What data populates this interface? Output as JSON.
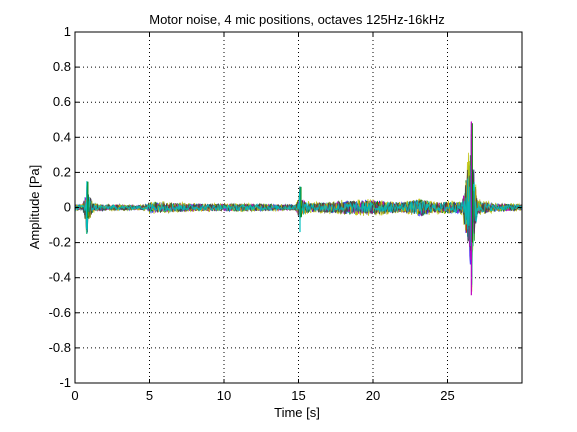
{
  "chart_data": {
    "type": "line",
    "title": "Motor noise, 4 mic positions, octaves 125Hz-16kHz",
    "xlabel": "Time [s]",
    "ylabel": "Amplitude [Pa]",
    "xlim": [
      0,
      30
    ],
    "ylim": [
      -1,
      1
    ],
    "xticks": [
      0,
      5,
      10,
      15,
      20,
      25
    ],
    "yticks": [
      -1,
      -0.8,
      -0.6,
      -0.4,
      -0.2,
      0,
      0.2,
      0.4,
      0.6,
      0.8,
      1
    ],
    "grid": true,
    "grid_style": "dotted",
    "legend": "none",
    "series_colors": [
      "#0000ff",
      "#008000",
      "#ff0000",
      "#00bfbf",
      "#bf00bf",
      "#bfbf00",
      "#404040",
      "#00bfbf"
    ],
    "notable_events": [
      {
        "x": 0.8,
        "ymax": 0.15,
        "ymin": -0.15
      },
      {
        "x": 15.1,
        "ymax": 0.12,
        "ymin": -0.14
      },
      {
        "x": 26.6,
        "ymax": 0.49,
        "ymin": -0.5
      }
    ],
    "envelope": {
      "x": [
        0,
        0.5,
        0.8,
        1.2,
        2,
        3,
        4,
        4.8,
        5,
        6,
        8,
        10,
        12,
        14,
        14.8,
        15.1,
        15.5,
        16,
        18,
        20,
        22,
        23.3,
        24,
        25,
        26,
        26.6,
        27,
        28,
        29,
        30
      ],
      "amplitude": [
        0.02,
        0.02,
        0.12,
        0.03,
        0.02,
        0.02,
        0.015,
        0.02,
        0.04,
        0.035,
        0.025,
        0.025,
        0.025,
        0.02,
        0.02,
        0.08,
        0.04,
        0.03,
        0.045,
        0.05,
        0.035,
        0.06,
        0.035,
        0.04,
        0.04,
        0.45,
        0.05,
        0.03,
        0.025,
        0.02
      ]
    }
  }
}
